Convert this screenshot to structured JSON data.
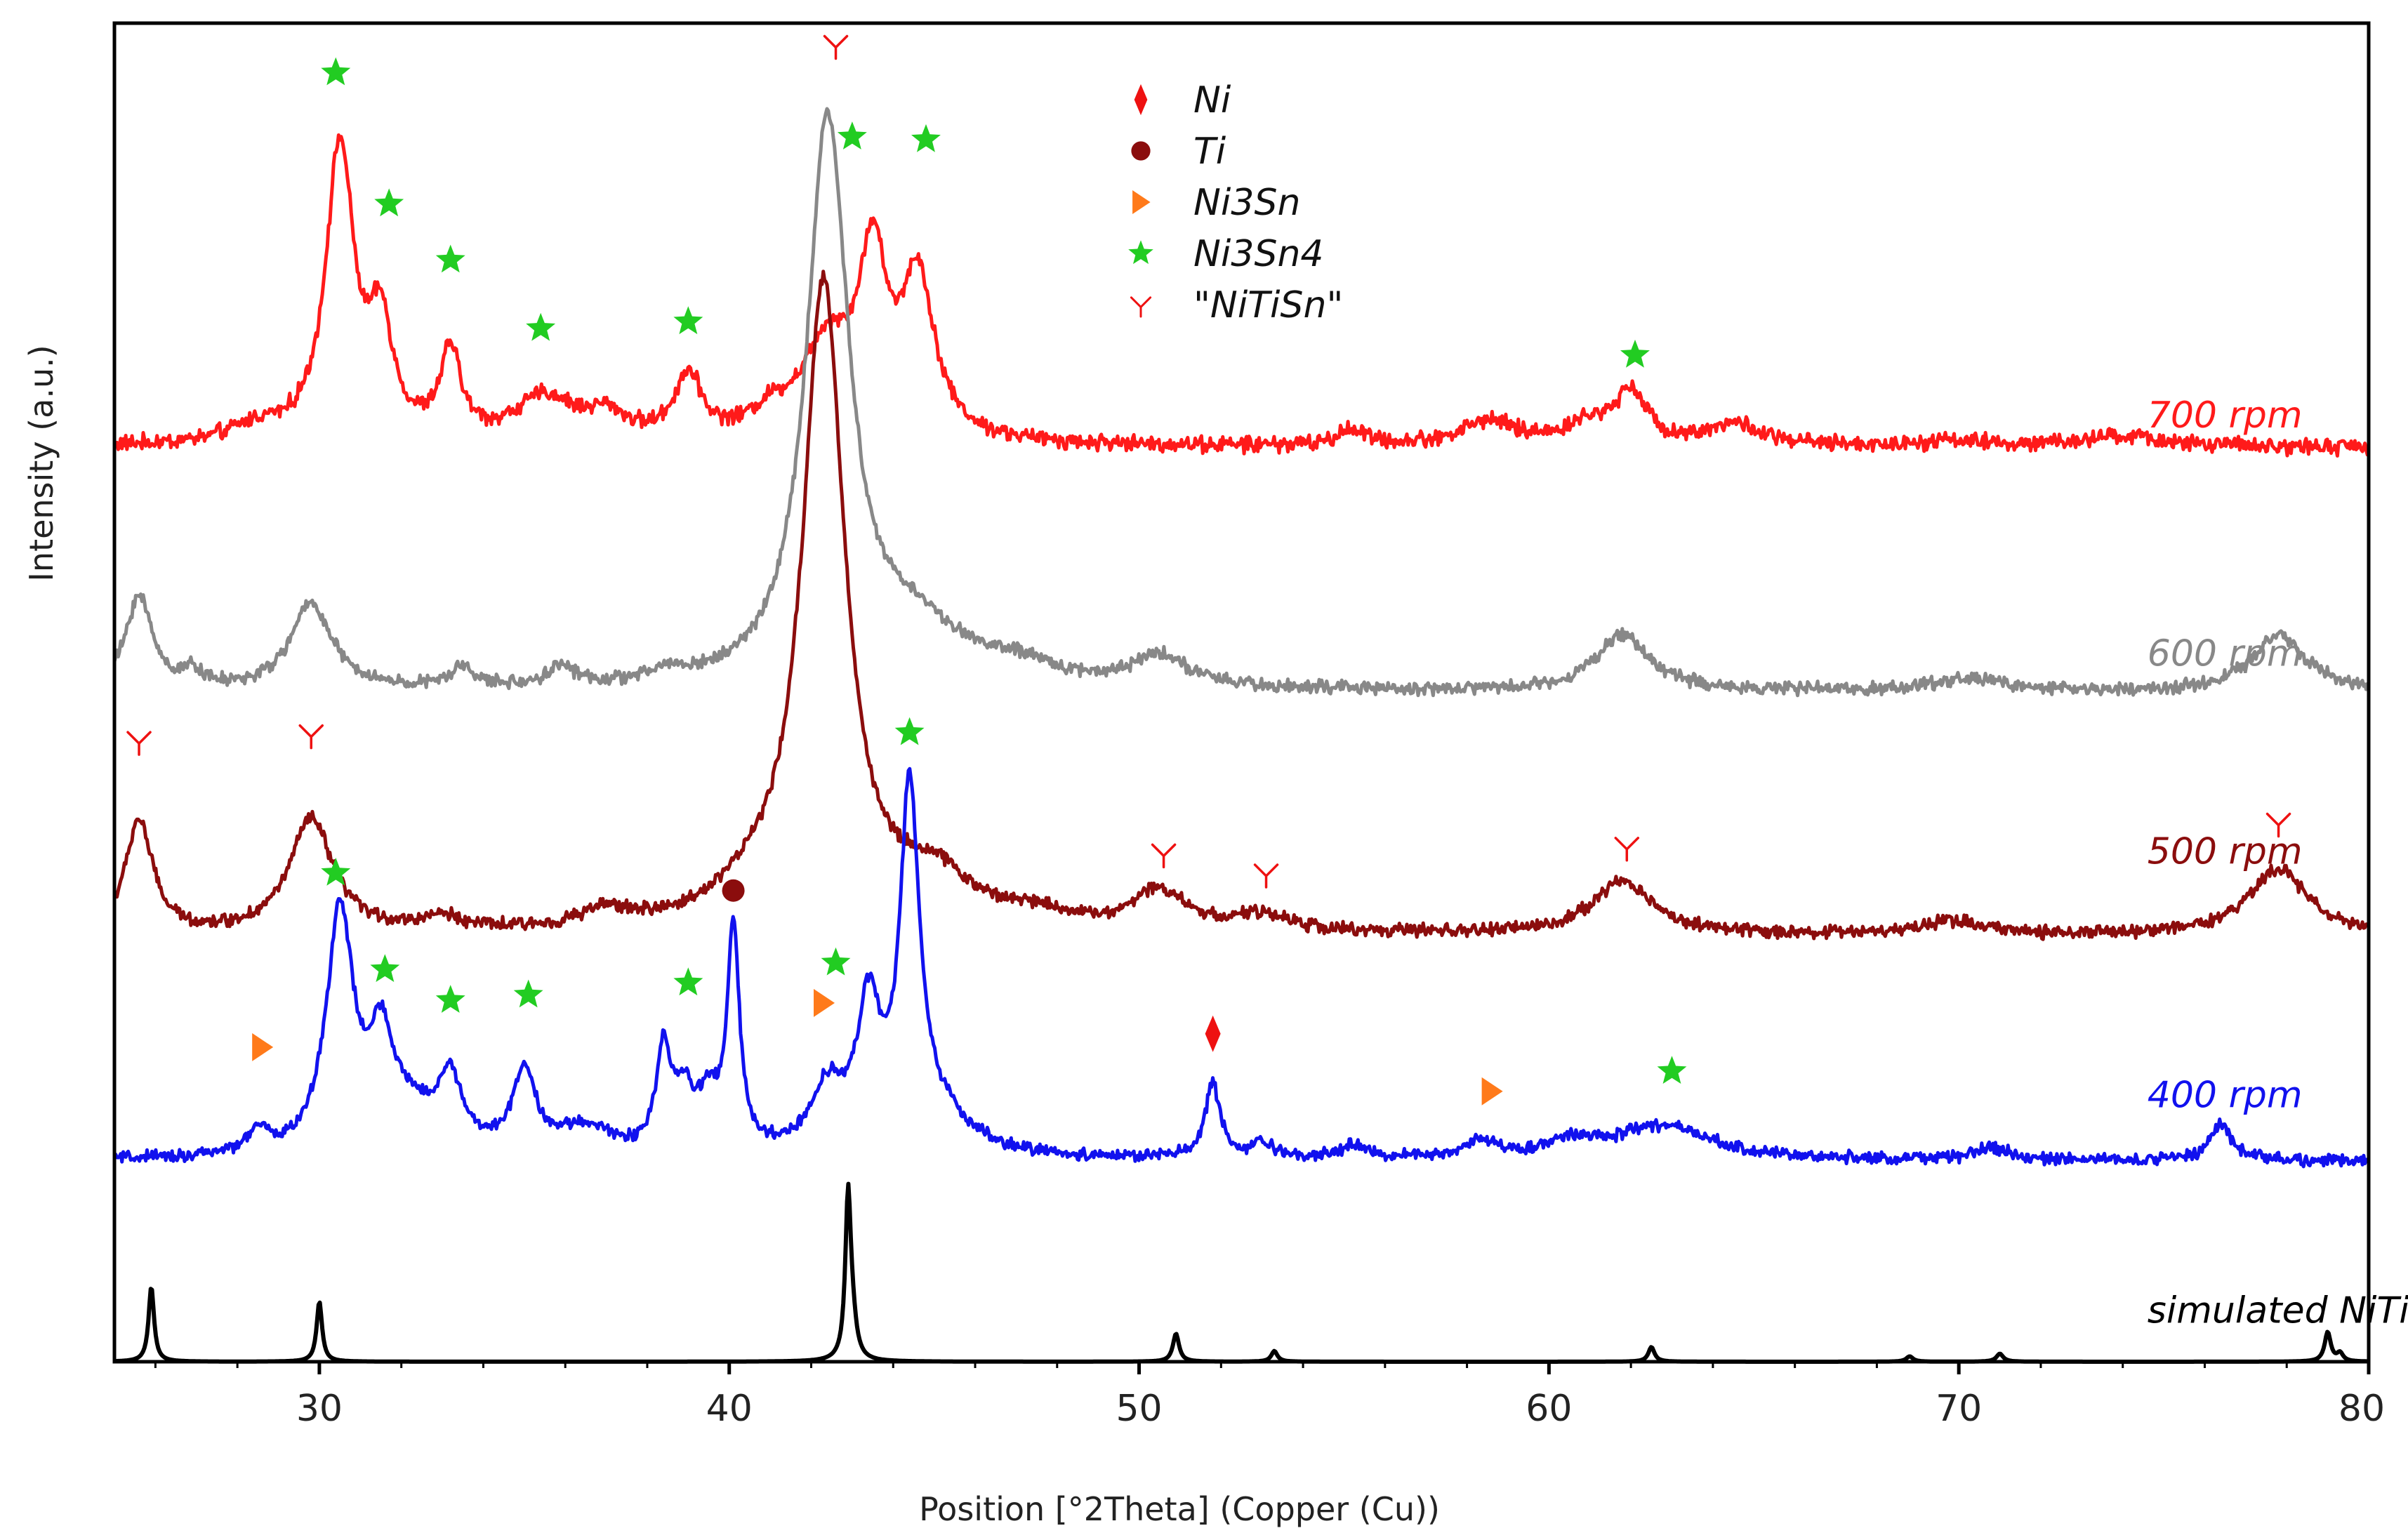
{
  "chart_data": {
    "type": "line",
    "title": "",
    "xlabel": "Position [°2Theta] (Copper (Cu))",
    "ylabel": "Intensity (a.u.)",
    "xlim": [
      25,
      80
    ],
    "ylim": [
      0,
      100
    ],
    "x_ticks": [
      30,
      40,
      50,
      60,
      70,
      80
    ],
    "grid": false,
    "legend_position": "top-center",
    "legend": [
      {
        "name": "Ni",
        "marker": "diamond",
        "color": "#ee1111",
        "text_main": "Ni",
        "text_sub": ""
      },
      {
        "name": "Ti",
        "marker": "circle",
        "color": "#8b0d0d",
        "text_main": "Ti",
        "text_sub": ""
      },
      {
        "name": "Ni3Sn",
        "marker": "triangle",
        "color": "#ff7a1a",
        "text_main": "Ni",
        "text_sub": "3",
        "text_tail": "Sn"
      },
      {
        "name": "Ni3Sn4",
        "marker": "star",
        "color": "#22cc22",
        "text_main": "Ni",
        "text_sub": "3",
        "text_tail": "Sn4"
      },
      {
        "name": "\"NiTiSn\"",
        "marker": "tri",
        "color": "#ee1111",
        "text_main": "\"NiTiSn\"",
        "text_sub": ""
      }
    ],
    "series": [
      {
        "name": "700 rpm",
        "color": "#ff1a1a",
        "label_x": 74.6,
        "label_y": 69.8,
        "baseline": 68.3,
        "noise": 0.75,
        "peaks": [
          [
            30.5,
            22.0,
            0.42
          ],
          [
            31.5,
            8.0,
            0.35
          ],
          [
            33.2,
            6.5,
            0.3
          ],
          [
            35.5,
            3.3,
            0.9
          ],
          [
            37.0,
            1.8,
            0.6
          ],
          [
            39.0,
            4.8,
            0.4
          ],
          [
            42.4,
            7.0,
            0.8
          ],
          [
            43.5,
            12.5,
            0.4
          ],
          [
            44.6,
            11.8,
            0.5
          ],
          [
            28.5,
            1.2,
            0.8
          ],
          [
            55.2,
            1.2,
            0.4
          ],
          [
            58.5,
            1.8,
            0.8
          ],
          [
            61.0,
            1.5,
            0.8
          ],
          [
            62.0,
            3.8,
            0.45
          ],
          [
            64.5,
            1.6,
            0.8
          ],
          [
            69.8,
            0.5,
            0.8
          ],
          [
            74.0,
            0.8,
            1.2
          ],
          [
            41.0,
            1.5,
            0.6
          ]
        ],
        "points": []
      },
      {
        "name": "600 rpm",
        "color": "#888888",
        "label_x": 74.6,
        "label_y": 52.0,
        "baseline": 50.0,
        "noise": 0.6,
        "peaks": [
          [
            25.6,
            7.0,
            0.4
          ],
          [
            29.8,
            6.5,
            0.6
          ],
          [
            26.9,
            1.3,
            0.25
          ],
          [
            33.5,
            1.5,
            0.35
          ],
          [
            35.9,
            1.5,
            0.4
          ],
          [
            38.5,
            0.8,
            0.5
          ],
          [
            42.4,
            42.0,
            0.62
          ],
          [
            44.5,
            4.0,
            1.5
          ],
          [
            50.5,
            2.4,
            0.8
          ],
          [
            61.8,
            4.2,
            0.8
          ],
          [
            70.2,
            1.0,
            1.0
          ],
          [
            77.8,
            4.2,
            0.8
          ],
          [
            47.0,
            1.2,
            1.2
          ]
        ],
        "points": []
      },
      {
        "name": "500 rpm",
        "color": "#8b0d0d",
        "label_x": 74.6,
        "label_y": 37.2,
        "baseline": 31.8,
        "noise": 0.6,
        "peaks": [
          [
            25.6,
            8.5,
            0.4
          ],
          [
            29.8,
            8.5,
            0.65
          ],
          [
            33.0,
            1.0,
            0.6
          ],
          [
            37.0,
            1.3,
            0.8
          ],
          [
            42.3,
            48.0,
            0.62
          ],
          [
            40.5,
            2.0,
            1.2
          ],
          [
            45.0,
            3.5,
            1.2
          ],
          [
            50.5,
            3.0,
            0.8
          ],
          [
            53.0,
            1.2,
            0.8
          ],
          [
            61.8,
            4.0,
            0.9
          ],
          [
            69.8,
            1.0,
            1.0
          ],
          [
            77.8,
            5.0,
            0.85
          ],
          [
            47.5,
            1.0,
            1.0
          ]
        ],
        "points": []
      },
      {
        "name": "400 rpm",
        "color": "#1111ee",
        "label_x": 74.6,
        "label_y": 19.0,
        "baseline": 15.0,
        "noise": 0.55,
        "peaks": [
          [
            28.5,
            1.6,
            0.35
          ],
          [
            30.5,
            18.0,
            0.4
          ],
          [
            31.5,
            7.0,
            0.35
          ],
          [
            33.2,
            5.0,
            0.35
          ],
          [
            35.0,
            6.0,
            0.35
          ],
          [
            38.4,
            7.5,
            0.2
          ],
          [
            38.9,
            4.0,
            0.3
          ],
          [
            39.5,
            3.5,
            0.3
          ],
          [
            40.1,
            16.5,
            0.18
          ],
          [
            42.4,
            4.5,
            0.5
          ],
          [
            43.4,
            10.0,
            0.35
          ],
          [
            44.4,
            25.5,
            0.28
          ],
          [
            45.0,
            3.0,
            1.0
          ],
          [
            32.2,
            3.0,
            0.8
          ],
          [
            36.5,
            2.0,
            0.8
          ],
          [
            51.8,
            5.5,
            0.22
          ],
          [
            53.0,
            1.0,
            0.35
          ],
          [
            55.2,
            0.9,
            0.4
          ],
          [
            58.3,
            1.2,
            0.5
          ],
          [
            60.5,
            1.2,
            0.8
          ],
          [
            62.8,
            2.5,
            1.4
          ],
          [
            70.8,
            0.9,
            0.5
          ],
          [
            76.4,
            2.8,
            0.3
          ]
        ],
        "points": []
      },
      {
        "name": "simulated NiTiSn",
        "color": "#000000",
        "label_x": 74.6,
        "label_y": 2.9,
        "baseline": 0.0,
        "noise": 0.0,
        "peaks": [
          [
            25.9,
            5.6,
            0.08
          ],
          [
            30.0,
            4.5,
            0.08
          ],
          [
            42.9,
            11.8,
            0.08
          ],
          [
            43.0,
            2.5,
            0.12
          ],
          [
            50.9,
            2.1,
            0.09
          ],
          [
            53.3,
            0.8,
            0.09
          ],
          [
            62.5,
            1.1,
            0.09
          ],
          [
            68.8,
            0.4,
            0.1
          ],
          [
            71.0,
            0.6,
            0.1
          ],
          [
            79.0,
            2.2,
            0.09
          ],
          [
            79.3,
            0.6,
            0.09
          ]
        ],
        "points": []
      }
    ],
    "annotations": [
      {
        "type": "star",
        "x": 30.4,
        "y": 96.3,
        "color": "#22cc22"
      },
      {
        "type": "star",
        "x": 31.7,
        "y": 86.5,
        "color": "#22cc22"
      },
      {
        "type": "star",
        "x": 33.2,
        "y": 82.3,
        "color": "#22cc22"
      },
      {
        "type": "star",
        "x": 35.4,
        "y": 77.2,
        "color": "#22cc22"
      },
      {
        "type": "star",
        "x": 39.0,
        "y": 77.7,
        "color": "#22cc22"
      },
      {
        "type": "star",
        "x": 43.0,
        "y": 91.5,
        "color": "#22cc22"
      },
      {
        "type": "star",
        "x": 44.8,
        "y": 91.3,
        "color": "#22cc22"
      },
      {
        "type": "star",
        "x": 62.1,
        "y": 75.2,
        "color": "#22cc22"
      },
      {
        "type": "tri",
        "x": 42.6,
        "y": 98.4,
        "color": "#ee1111"
      },
      {
        "type": "tri",
        "x": 25.6,
        "y": 46.4,
        "color": "#ee1111"
      },
      {
        "type": "tri",
        "x": 29.8,
        "y": 46.9,
        "color": "#ee1111"
      },
      {
        "type": "tri",
        "x": 50.6,
        "y": 38.0,
        "color": "#ee1111"
      },
      {
        "type": "tri",
        "x": 53.1,
        "y": 36.5,
        "color": "#ee1111"
      },
      {
        "type": "tri",
        "x": 61.9,
        "y": 38.5,
        "color": "#ee1111"
      },
      {
        "type": "tri",
        "x": 77.8,
        "y": 40.3,
        "color": "#ee1111"
      },
      {
        "type": "star",
        "x": 44.4,
        "y": 47.0,
        "color": "#22cc22"
      },
      {
        "type": "star",
        "x": 30.4,
        "y": 36.5,
        "color": "#22cc22"
      },
      {
        "type": "circle",
        "x": 40.1,
        "y": 35.2,
        "color": "#8b0d0d"
      },
      {
        "type": "star",
        "x": 31.6,
        "y": 29.3,
        "color": "#22cc22"
      },
      {
        "type": "star",
        "x": 33.2,
        "y": 27.0,
        "color": "#22cc22"
      },
      {
        "type": "star",
        "x": 35.1,
        "y": 27.4,
        "color": "#22cc22"
      },
      {
        "type": "star",
        "x": 39.0,
        "y": 28.3,
        "color": "#22cc22"
      },
      {
        "type": "star",
        "x": 42.6,
        "y": 29.8,
        "color": "#22cc22"
      },
      {
        "type": "star",
        "x": 63.0,
        "y": 21.7,
        "color": "#22cc22"
      },
      {
        "type": "triangle",
        "x": 42.3,
        "y": 26.8,
        "color": "#ff7a1a"
      },
      {
        "type": "triangle",
        "x": 28.6,
        "y": 23.5,
        "color": "#ff7a1a"
      },
      {
        "type": "triangle",
        "x": 58.6,
        "y": 20.2,
        "color": "#ff7a1a"
      },
      {
        "type": "diamond",
        "x": 51.8,
        "y": 24.5,
        "color": "#ee1111"
      }
    ]
  }
}
